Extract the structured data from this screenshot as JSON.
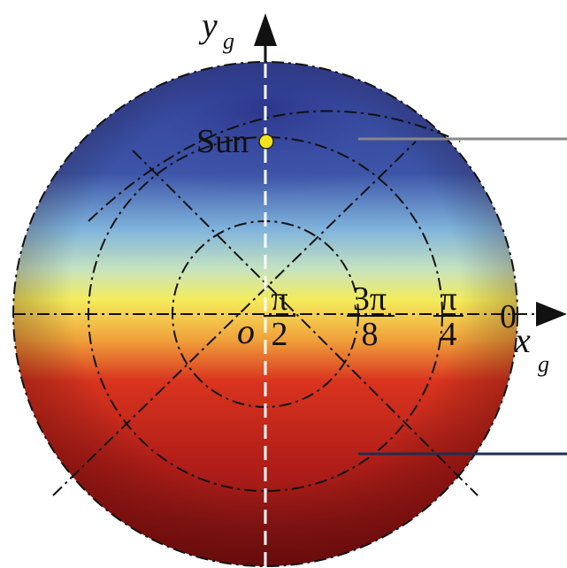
{
  "labels": {
    "y_axis": {
      "main": "y",
      "sub": "g"
    },
    "x_axis": {
      "main": "x",
      "sub": "g"
    },
    "sun": "Sun",
    "origin": "o",
    "zero": "0"
  },
  "fractions": [
    {
      "num": "π",
      "den": "2"
    },
    {
      "num": "3π",
      "den": "8"
    },
    {
      "num": "π",
      "den": "4"
    }
  ]
}
